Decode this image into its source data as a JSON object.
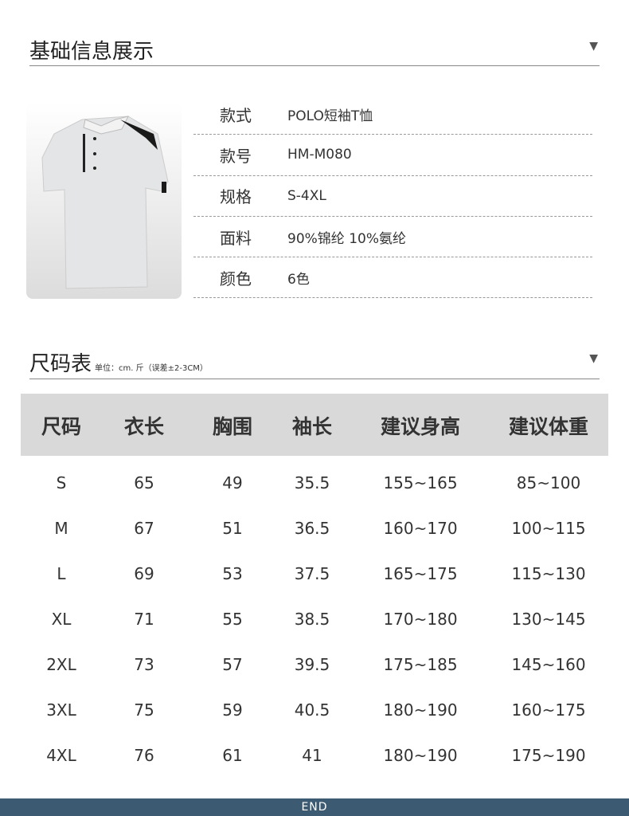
{
  "basic": {
    "title": "基础信息展示",
    "rows": [
      {
        "label": "款式",
        "value": "POLO短袖T恤"
      },
      {
        "label": "款号",
        "value": "HM-M080"
      },
      {
        "label": "规格",
        "value": "S-4XL"
      },
      {
        "label": "面料",
        "value": "90%锦纶 10%氨纶"
      },
      {
        "label": "颜色",
        "value": "6色"
      }
    ]
  },
  "size": {
    "title": "尺码表",
    "unit": "单位：cm. 斤（误差±2-3CM）",
    "headers": [
      "尺码",
      "衣长",
      "胸围",
      "袖长",
      "建议身高",
      "建议体重"
    ],
    "rows": [
      [
        "S",
        "65",
        "49",
        "35.5",
        "155~165",
        "85~100"
      ],
      [
        "M",
        "67",
        "51",
        "36.5",
        "160~170",
        "100~115"
      ],
      [
        "L",
        "69",
        "53",
        "37.5",
        "165~175",
        "115~130"
      ],
      [
        "XL",
        "71",
        "55",
        "38.5",
        "170~180",
        "130~145"
      ],
      [
        "2XL",
        "73",
        "57",
        "39.5",
        "175~185",
        "145~160"
      ],
      [
        "3XL",
        "75",
        "59",
        "40.5",
        "180~190",
        "160~175"
      ],
      [
        "4XL",
        "76",
        "61",
        "41",
        "180~190",
        "175~190"
      ]
    ]
  },
  "footer": "END",
  "colors": {
    "header_bg": "#d9d9d9",
    "footer_bg": "#3d5a73"
  }
}
